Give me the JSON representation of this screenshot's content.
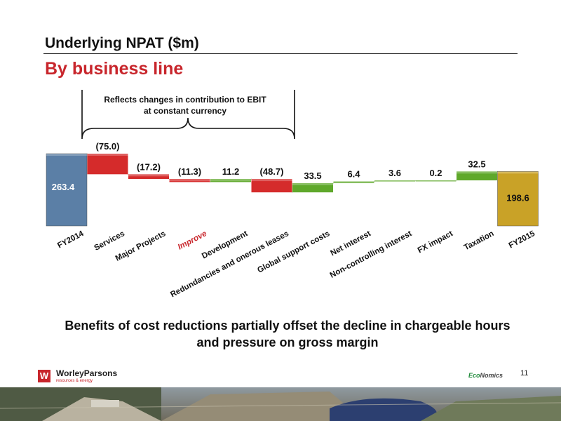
{
  "slide": {
    "title": "Underlying NPAT ($m)",
    "subtitle": "By business line",
    "message_line1": "Benefits of cost reductions partially offset the decline in chargeable hours",
    "message_line2": "and pressure on gross margin",
    "page_number": "11"
  },
  "brand": {
    "company": "WorleyParsons",
    "tagline": "resources & energy",
    "econ_prefix": "Eco",
    "econ_suffix": "Nomics"
  },
  "colors": {
    "total": "#5b7fa6",
    "total_end": "#c9a227",
    "negative": "#d52b2b",
    "positive": "#5fa82b",
    "highlight_label": "#c8262c"
  },
  "chart_data": {
    "type": "waterfall",
    "bracket_label": "Reflects changes in contribution to EBIT at constant currency",
    "bracket_label_line1": "Reflects changes in contribution to EBIT",
    "bracket_label_line2": "at constant currency",
    "bracket_span": [
      "Services",
      "Redundancies and onerous leases"
    ],
    "categories": [
      "FY2014",
      "Services",
      "Major Projects",
      "Improve",
      "Development",
      "Redundancies and onerous leases",
      "Global support costs",
      "Net interest",
      "Non-controlling interest",
      "FX impact",
      "Taxation",
      "FY2015"
    ],
    "values": [
      263.4,
      -75.0,
      -17.2,
      -11.3,
      11.2,
      -48.7,
      33.5,
      6.4,
      3.6,
      0.2,
      32.5,
      198.6
    ],
    "labels": [
      "263.4",
      "(75.0)",
      "(17.2)",
      "(11.3)",
      "11.2",
      "(48.7)",
      "33.5",
      "6.4",
      "3.6",
      "0.2",
      "32.5",
      "198.6"
    ],
    "kinds": [
      "total",
      "delta",
      "delta",
      "delta",
      "delta",
      "delta",
      "delta",
      "delta",
      "delta",
      "delta",
      "delta",
      "total"
    ],
    "highlighted_category": "Improve"
  }
}
